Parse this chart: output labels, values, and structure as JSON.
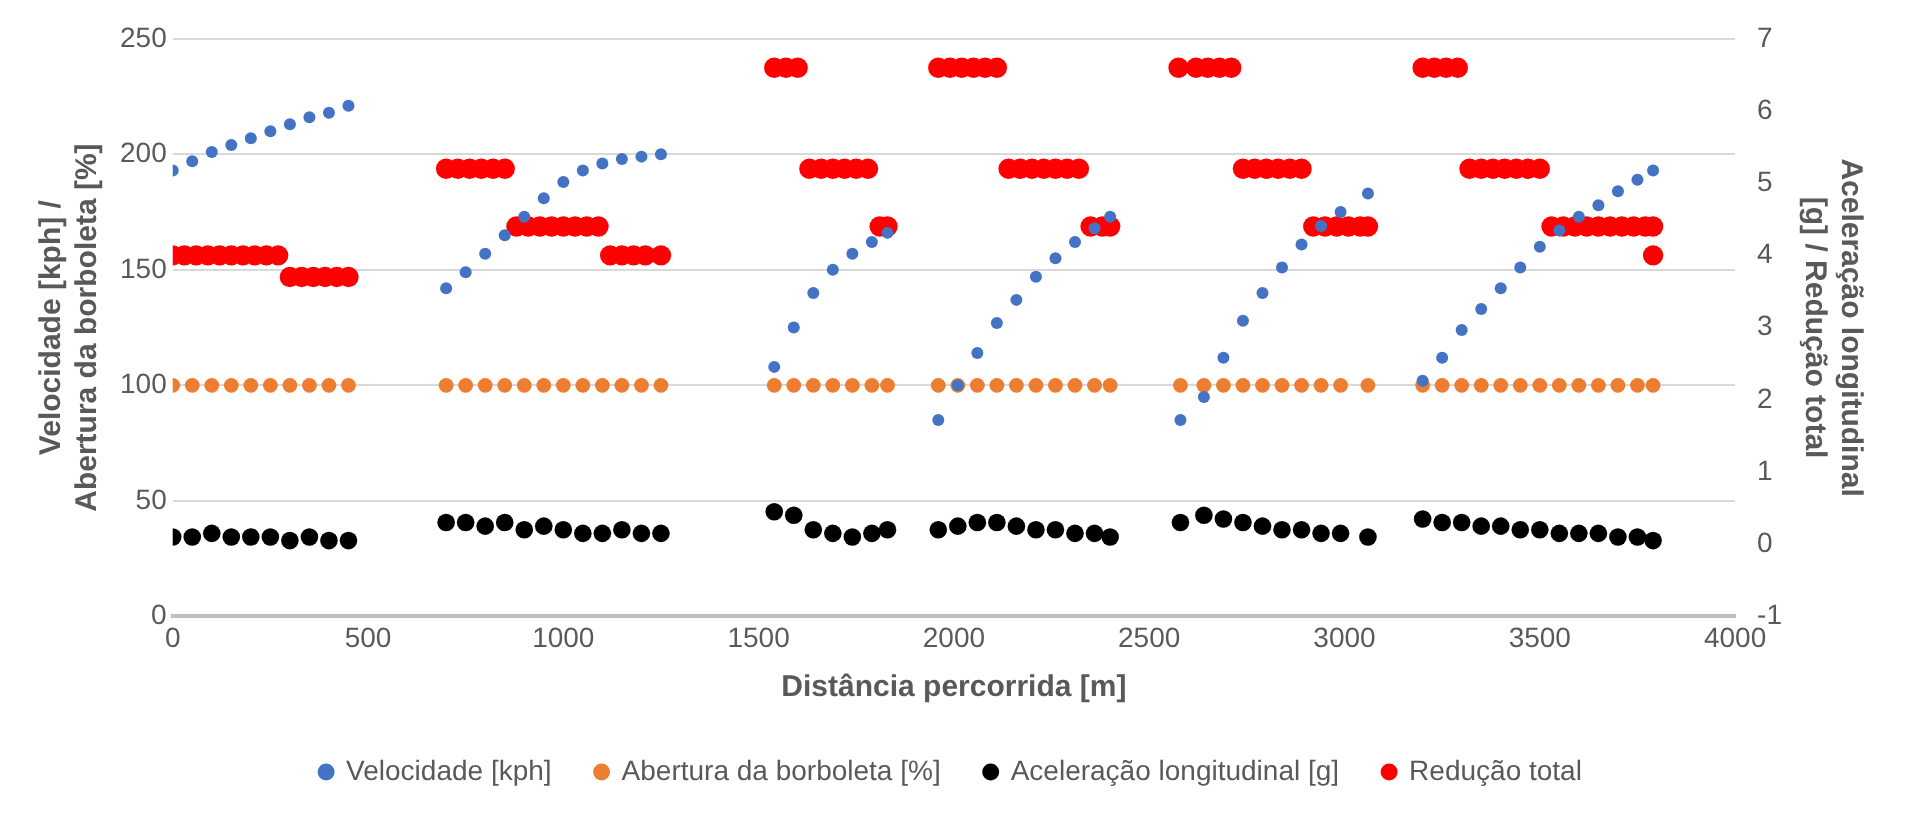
{
  "chart_data": {
    "type": "scatter",
    "xlabel": "Distância percorrida [m]",
    "ylabel": "Velocidade [kph] / Abertura da borboleta [%]",
    "y2label": "Aceleração longitudinal [g] / Redução total",
    "x": [
      0,
      50,
      100,
      150,
      200,
      250,
      300,
      350,
      400,
      450,
      700,
      750,
      800,
      850,
      900,
      950,
      1000,
      1050,
      1100,
      1150,
      1200,
      1250,
      1540,
      1590,
      1640,
      1690,
      1740,
      1790,
      1830,
      1960,
      2010,
      2060,
      2110,
      2160,
      2210,
      2260,
      2310,
      2360,
      2400,
      2580,
      2640,
      2690,
      2740,
      2790,
      2840,
      2890,
      2940,
      2990,
      3060,
      3200,
      3250,
      3300,
      3350,
      3400,
      3450,
      3500,
      3550,
      3600,
      3650,
      3700,
      3750,
      3790
    ],
    "series": [
      {
        "name": "Velocidade [kph]",
        "color": "#4472c4",
        "values": [
          193,
          197,
          201,
          204,
          207,
          210,
          213,
          216,
          218,
          221,
          142,
          149,
          157,
          165,
          173,
          181,
          188,
          193,
          196,
          198,
          199,
          200,
          108,
          125,
          140,
          150,
          157,
          162,
          166,
          85,
          100,
          114,
          127,
          137,
          147,
          155,
          162,
          168,
          173,
          85,
          95,
          112,
          128,
          140,
          151,
          161,
          169,
          175,
          183,
          102,
          112,
          124,
          133,
          142,
          151,
          160,
          167,
          173,
          178,
          184,
          189,
          193
        ]
      },
      {
        "name": "Abertura da borboleta [%]",
        "color": "#ed7d31",
        "values": [
          100,
          100,
          100,
          100,
          100,
          100,
          100,
          100,
          100,
          100,
          100,
          100,
          100,
          100,
          100,
          100,
          100,
          100,
          100,
          100,
          100,
          100,
          100,
          100,
          100,
          100,
          100,
          100,
          100,
          100,
          100,
          100,
          100,
          100,
          100,
          100,
          100,
          100,
          100,
          100,
          100,
          100,
          100,
          100,
          100,
          100,
          100,
          100,
          100,
          100,
          100,
          100,
          100,
          100,
          100,
          100,
          100,
          100,
          100,
          100,
          100,
          100
        ]
      },
      {
        "name": "Aceleração longitudinal [g]",
        "color": "#000000",
        "axis": "y2",
        "values": [
          0.1,
          0.1,
          0.15,
          0.1,
          0.1,
          0.1,
          0.05,
          0.1,
          0.05,
          0.05,
          0.3,
          0.3,
          0.25,
          0.3,
          0.2,
          0.25,
          0.2,
          0.15,
          0.15,
          0.2,
          0.15,
          0.15,
          0.45,
          0.4,
          0.2,
          0.15,
          0.1,
          0.15,
          0.2,
          0.2,
          0.25,
          0.3,
          0.3,
          0.25,
          0.2,
          0.2,
          0.15,
          0.15,
          0.1,
          0.3,
          0.4,
          0.35,
          0.3,
          0.25,
          0.2,
          0.2,
          0.15,
          0.15,
          0.1,
          0.35,
          0.3,
          0.3,
          0.25,
          0.25,
          0.2,
          0.2,
          0.15,
          0.15,
          0.15,
          0.1,
          0.1,
          0.05
        ]
      },
      {
        "name": "Redução total",
        "color": "#ff0000",
        "axis": "y2",
        "x": [
          0,
          30,
          60,
          90,
          120,
          150,
          180,
          210,
          240,
          270,
          300,
          330,
          360,
          390,
          420,
          450,
          700,
          730,
          760,
          790,
          820,
          850,
          880,
          910,
          940,
          970,
          1000,
          1030,
          1060,
          1090,
          1120,
          1150,
          1180,
          1210,
          1250,
          1540,
          1570,
          1600,
          1630,
          1660,
          1690,
          1720,
          1750,
          1780,
          1810,
          1830,
          1960,
          1990,
          2020,
          2050,
          2080,
          2110,
          2140,
          2170,
          2200,
          2230,
          2260,
          2290,
          2320,
          2350,
          2380,
          2400,
          2575,
          2620,
          2650,
          2680,
          2710,
          2740,
          2770,
          2800,
          2830,
          2860,
          2890,
          2920,
          2950,
          2980,
          3010,
          3040,
          3060,
          3200,
          3230,
          3260,
          3290,
          3320,
          3350,
          3380,
          3410,
          3440,
          3470,
          3500,
          3530,
          3560,
          3590,
          3620,
          3650,
          3680,
          3710,
          3740,
          3770,
          3790,
          3790
        ],
        "values": [
          4.0,
          4.0,
          4.0,
          4.0,
          4.0,
          4.0,
          4.0,
          4.0,
          4.0,
          4.0,
          3.7,
          3.7,
          3.7,
          3.7,
          3.7,
          3.7,
          5.2,
          5.2,
          5.2,
          5.2,
          5.2,
          5.2,
          4.4,
          4.4,
          4.4,
          4.4,
          4.4,
          4.4,
          4.4,
          4.4,
          4.0,
          4.0,
          4.0,
          4.0,
          4.0,
          6.6,
          6.6,
          6.6,
          5.2,
          5.2,
          5.2,
          5.2,
          5.2,
          5.2,
          4.4,
          4.4,
          6.6,
          6.6,
          6.6,
          6.6,
          6.6,
          6.6,
          5.2,
          5.2,
          5.2,
          5.2,
          5.2,
          5.2,
          5.2,
          4.4,
          4.4,
          4.4,
          6.6,
          6.6,
          6.6,
          6.6,
          6.6,
          5.2,
          5.2,
          5.2,
          5.2,
          5.2,
          5.2,
          4.4,
          4.4,
          4.4,
          4.4,
          4.4,
          4.4,
          6.6,
          6.6,
          6.6,
          6.6,
          5.2,
          5.2,
          5.2,
          5.2,
          5.2,
          5.2,
          5.2,
          4.4,
          4.4,
          4.4,
          4.4,
          4.4,
          4.4,
          4.4,
          4.4,
          4.4,
          4.4,
          4.0
        ]
      }
    ],
    "xlim": [
      0,
      4000
    ],
    "xticks": [
      0,
      500,
      1000,
      1500,
      2000,
      2500,
      3000,
      3500,
      4000
    ],
    "ylim": [
      0,
      250
    ],
    "yticks": [
      0,
      50,
      100,
      150,
      200,
      250
    ],
    "y2lim": [
      -1,
      7
    ],
    "y2ticks": [
      -1,
      0,
      1,
      2,
      3,
      4,
      5,
      6,
      7
    ],
    "grid": "y",
    "legend": "bottom",
    "marker": "circle"
  }
}
